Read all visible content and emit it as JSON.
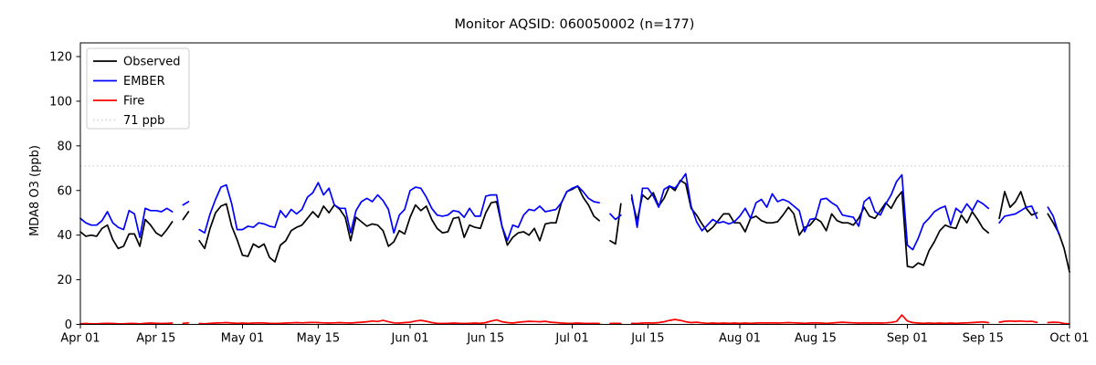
{
  "chart_data": {
    "type": "line",
    "title": "Monitor AQSID: 060050002 (n=177)",
    "xlabel": "",
    "ylabel": "MDA8 O3 (ppb)",
    "x_unit": "days since Apr 01",
    "x_range_days": [
      0,
      183
    ],
    "ylim": [
      0,
      126
    ],
    "grid": false,
    "legend_position": "upper-left",
    "threshold": {
      "label": "71 ppb",
      "value": 71,
      "color": "#d3d3d3",
      "style": "dotted"
    },
    "x_ticks": [
      {
        "day": 0,
        "label": "Apr 01"
      },
      {
        "day": 14,
        "label": "Apr 15"
      },
      {
        "day": 30,
        "label": "May 01"
      },
      {
        "day": 44,
        "label": "May 15"
      },
      {
        "day": 61,
        "label": "Jun 01"
      },
      {
        "day": 75,
        "label": "Jun 15"
      },
      {
        "day": 91,
        "label": "Jul 01"
      },
      {
        "day": 105,
        "label": "Jul 15"
      },
      {
        "day": 122,
        "label": "Aug 01"
      },
      {
        "day": 136,
        "label": "Aug 15"
      },
      {
        "day": 153,
        "label": "Sep 01"
      },
      {
        "day": 167,
        "label": "Sep 15"
      },
      {
        "day": 183,
        "label": "Oct 01"
      }
    ],
    "y_ticks": [
      0,
      20,
      40,
      60,
      80,
      100,
      120
    ],
    "series": [
      {
        "name": "Observed",
        "color": "#000000",
        "style": "solid",
        "values": [
          41.5,
          39.5,
          40,
          39.5,
          43,
          44.5,
          38,
          34,
          35,
          40.5,
          40.5,
          35,
          47,
          44.5,
          41,
          39.5,
          42.5,
          46,
          null,
          47,
          50.5,
          null,
          37.5,
          34,
          43,
          50,
          53,
          54,
          44,
          38,
          31,
          30.5,
          36,
          34.5,
          36,
          30,
          28,
          35.5,
          37.5,
          42,
          43.5,
          44.5,
          47.5,
          50.5,
          48,
          53,
          50,
          53.5,
          51.5,
          48,
          37.5,
          48,
          46,
          44,
          45,
          44.5,
          42,
          35,
          37,
          42,
          40.5,
          48,
          53.5,
          51,
          53,
          47,
          43,
          41,
          41.5,
          47.5,
          48,
          39,
          44.5,
          43.5,
          43,
          50,
          54.5,
          55,
          44,
          35.5,
          39,
          41,
          41.5,
          40,
          43,
          37.5,
          45,
          45.5,
          45.5,
          54.5,
          59.5,
          60.5,
          62,
          57,
          53.5,
          48.5,
          46.5,
          null,
          37.5,
          36,
          54,
          null,
          56.5,
          46.5,
          58,
          56,
          59,
          53,
          56.5,
          62,
          60,
          64.5,
          63,
          52,
          49,
          45,
          41.5,
          43.5,
          46.5,
          49.5,
          49.5,
          45.5,
          45.5,
          41.5,
          47.5,
          48.5,
          46.5,
          45.5,
          45.5,
          46,
          49,
          52.5,
          49.5,
          40,
          43.5,
          44.5,
          47.5,
          46,
          42,
          49.5,
          46.5,
          45.5,
          45.5,
          44.5,
          47.5,
          52.5,
          48.5,
          47.5,
          51,
          54.5,
          52,
          56.5,
          59.5,
          26,
          25.5,
          27.5,
          26.5,
          33,
          37,
          42,
          44.5,
          43.5,
          43,
          49,
          45.5,
          50.5,
          47,
          43,
          41,
          null,
          47.5,
          59.5,
          52.5,
          55,
          59.5,
          52,
          49,
          50,
          null,
          49.5,
          45.5,
          41,
          34,
          23.5
        ]
      },
      {
        "name": "EMBER",
        "color": "#0000ff",
        "style": "solid",
        "values": [
          47.5,
          45.5,
          44.5,
          44.5,
          46.5,
          50.5,
          45.5,
          43.5,
          42.5,
          51,
          49.5,
          39,
          52,
          51,
          51,
          50.5,
          52,
          50.5,
          null,
          53.5,
          55,
          null,
          42.5,
          41,
          49.5,
          56,
          61.5,
          62.5,
          54,
          42.5,
          42.5,
          44,
          43.5,
          45.5,
          45,
          44,
          43.5,
          51,
          48,
          51.5,
          49.5,
          51.5,
          57,
          59,
          63.5,
          58,
          61,
          53.5,
          52,
          52,
          41,
          51,
          55,
          56.5,
          55,
          58,
          55.5,
          51.5,
          41,
          49,
          51.5,
          60,
          61.5,
          61,
          57,
          52,
          49,
          48.5,
          49,
          51,
          50.5,
          48,
          52,
          48.5,
          48.5,
          57.5,
          58,
          58,
          44,
          37.5,
          44.5,
          43.5,
          49,
          51.5,
          51,
          53,
          50.5,
          51,
          51.5,
          54.5,
          59.5,
          61,
          62,
          59.5,
          56.5,
          55,
          54.5,
          null,
          49.5,
          47,
          49,
          null,
          58,
          43.5,
          61,
          61,
          57.5,
          52.5,
          60.5,
          62,
          61,
          64,
          67.5,
          53,
          46,
          42,
          44.5,
          47,
          45.5,
          46,
          45,
          46,
          48.5,
          52,
          47.5,
          54.5,
          56,
          52.5,
          58.5,
          55,
          56,
          55,
          53,
          51,
          41.5,
          47,
          47.5,
          56,
          56.5,
          54.5,
          53,
          49,
          48.5,
          48,
          44,
          55,
          57,
          50.5,
          49,
          54,
          58,
          64,
          67,
          35.5,
          33.5,
          38.5,
          45,
          47.5,
          50.5,
          52,
          53,
          44.5,
          52,
          50,
          54,
          51,
          55.5,
          54,
          52,
          null,
          45.5,
          48.5,
          49,
          49.5,
          51,
          52.5,
          53,
          47.5,
          null,
          52.5,
          48.5,
          40.5,
          null,
          null
        ]
      },
      {
        "name": "Fire",
        "color": "#ff0000",
        "style": "solid",
        "values": [
          0.3,
          0.4,
          0.3,
          0.3,
          0.4,
          0.5,
          0.4,
          0.3,
          0.3,
          0.4,
          0.4,
          0.3,
          0.5,
          0.6,
          0.5,
          0.4,
          0.5,
          0.6,
          null,
          0.5,
          0.7,
          null,
          0.4,
          0.3,
          0.5,
          0.6,
          0.7,
          0.8,
          0.6,
          0.5,
          0.6,
          0.5,
          0.6,
          0.7,
          0.6,
          0.5,
          0.4,
          0.5,
          0.6,
          0.7,
          0.8,
          0.7,
          0.8,
          0.9,
          0.8,
          0.7,
          0.6,
          0.7,
          0.8,
          0.7,
          0.6,
          0.8,
          1.0,
          1.2,
          1.5,
          1.3,
          1.8,
          1.2,
          0.7,
          0.6,
          0.8,
          1.0,
          1.5,
          1.8,
          1.4,
          0.8,
          0.5,
          0.4,
          0.5,
          0.6,
          0.5,
          0.4,
          0.5,
          0.6,
          0.5,
          0.8,
          1.5,
          2.0,
          1.2,
          0.8,
          0.6,
          1.0,
          1.2,
          1.4,
          1.3,
          1.2,
          1.4,
          1.0,
          0.8,
          0.6,
          0.5,
          0.5,
          0.6,
          0.5,
          0.4,
          0.5,
          0.4,
          null,
          0.4,
          0.5,
          0.4,
          null,
          0.5,
          0.4,
          0.6,
          0.7,
          0.6,
          0.8,
          1.2,
          1.8,
          2.2,
          1.8,
          1.2,
          0.8,
          1.0,
          0.7,
          0.5,
          0.6,
          0.5,
          0.6,
          0.5,
          0.6,
          0.5,
          0.6,
          0.5,
          0.6,
          0.7,
          0.6,
          0.7,
          0.6,
          0.7,
          0.8,
          0.7,
          0.6,
          0.5,
          0.6,
          0.7,
          0.6,
          0.5,
          0.6,
          0.8,
          1.0,
          0.8,
          0.7,
          0.6,
          0.7,
          0.6,
          0.7,
          0.6,
          0.7,
          0.9,
          1.3,
          4.2,
          1.5,
          0.8,
          0.6,
          0.5,
          0.6,
          0.5,
          0.6,
          0.5,
          0.6,
          0.5,
          0.6,
          0.7,
          0.8,
          1.0,
          1.1,
          0.8,
          null,
          1.0,
          1.4,
          1.5,
          1.4,
          1.5,
          1.3,
          1.4,
          0.9,
          null,
          0.8,
          1.0,
          0.9,
          0.4,
          0.3
        ]
      }
    ],
    "legend": [
      {
        "label": "Observed",
        "color": "#000000",
        "style": "solid"
      },
      {
        "label": "EMBER",
        "color": "#0000ff",
        "style": "solid"
      },
      {
        "label": "Fire",
        "color": "#ff0000",
        "style": "solid"
      },
      {
        "label": "71 ppb",
        "color": "#d3d3d3",
        "style": "dotted"
      }
    ],
    "colors": {
      "background": "#ffffff",
      "axis": "#000000",
      "threshold": "#d3d3d3"
    }
  }
}
